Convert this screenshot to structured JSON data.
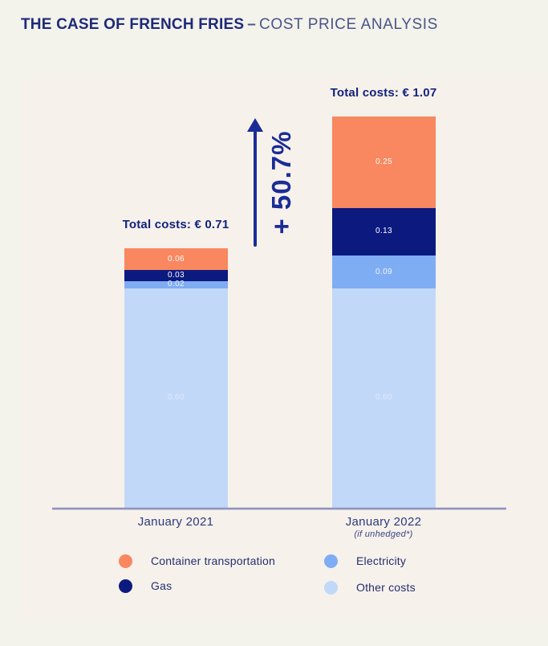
{
  "title": {
    "bold": "THE CASE OF FRENCH FRIES",
    "separator": "–",
    "light": "COST PRICE ANALYSIS"
  },
  "chart_data": {
    "type": "bar",
    "stacked": true,
    "title": "THE CASE OF FRENCH FRIES – COST PRICE ANALYSIS",
    "currency": "€",
    "categories": [
      "January 2021",
      "January 2022"
    ],
    "category_notes": [
      "",
      "(if unhedged*)"
    ],
    "totals": [
      0.71,
      1.07
    ],
    "total_labels": [
      "Total costs: € 0.71",
      "Total costs: € 1.07"
    ],
    "increase_annotation": "+ 50.7%",
    "ylim": [
      0,
      1.07
    ],
    "legend_position": "bottom",
    "grid": false,
    "series": [
      {
        "name": "Container transportation",
        "color": "#F9875F",
        "label_color": "#FFFFFF",
        "values": [
          0.06,
          0.25
        ]
      },
      {
        "name": "Gas",
        "color": "#0C1A80",
        "label_color": "#FFFFFF",
        "values": [
          0.03,
          0.13
        ]
      },
      {
        "name": "Electricity",
        "color": "#7FADF3",
        "label_color": "#EFF5FE",
        "values": [
          0.02,
          0.09
        ]
      },
      {
        "name": "Other costs",
        "color": "#C2D8F9",
        "label_color": "#DDE9FB",
        "values": [
          0.6,
          0.6
        ]
      }
    ],
    "colors": {
      "page_background": "#F3F2EB",
      "panel_background": "#F6F1EB",
      "axis": "#8E93BB",
      "title_navy": "#1E2A78",
      "annotation_navy": "#1B2C96"
    }
  }
}
